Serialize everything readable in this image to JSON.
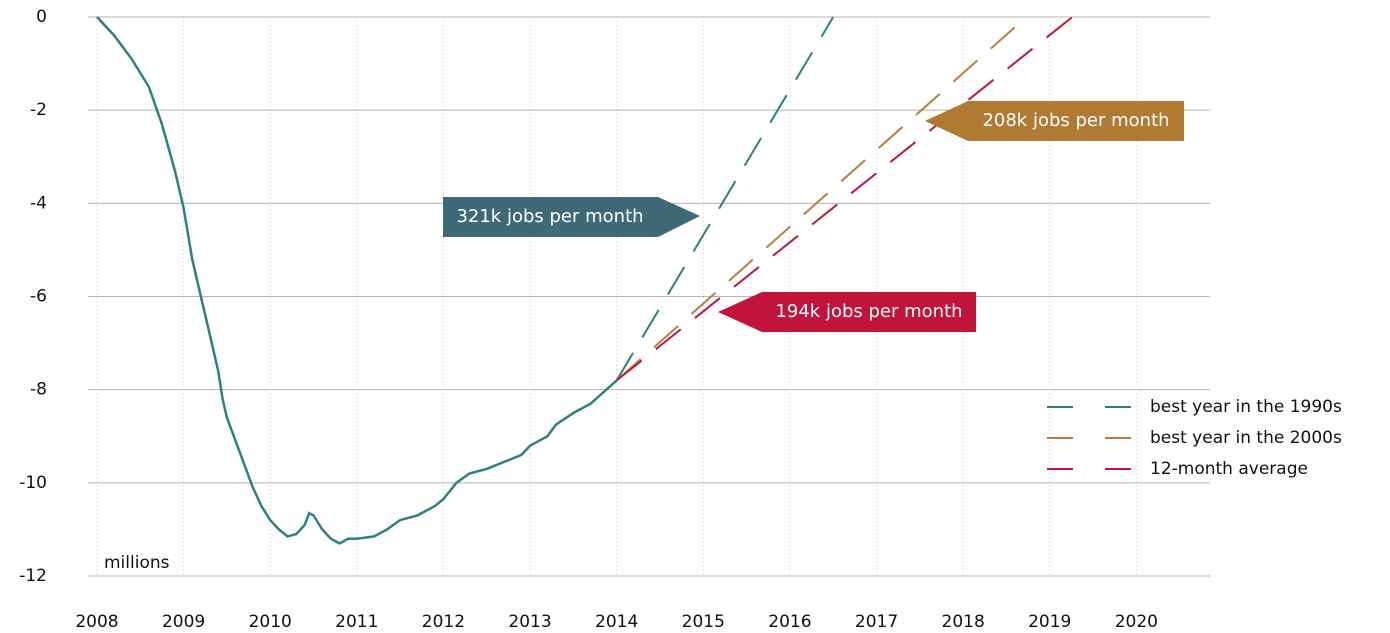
{
  "chart_data": {
    "type": "line",
    "y_label": "millions",
    "xlim": [
      2007.9,
      2020.85
    ],
    "ylim": [
      -12,
      0
    ],
    "xticks": [
      2008,
      2009,
      2010,
      2011,
      2012,
      2013,
      2014,
      2015,
      2016,
      2017,
      2018,
      2019,
      2020
    ],
    "yticks": [
      0,
      -2,
      -4,
      -6,
      -8,
      -10,
      -12
    ],
    "grid": true,
    "legend": "lower right",
    "series": [
      {
        "color": "#2f8080",
        "style": "solid",
        "x": [
          2008.0,
          2008.2,
          2008.4,
          2008.6,
          2008.75,
          2008.9,
          2009.0,
          2009.1,
          2009.2,
          2009.3,
          2009.4,
          2009.45,
          2009.5,
          2009.6,
          2009.7,
          2009.8,
          2009.9,
          2010.0,
          2010.1,
          2010.2,
          2010.3,
          2010.4,
          2010.45,
          2010.5,
          2010.6,
          2010.7,
          2010.8,
          2010.9,
          2011.0,
          2011.2,
          2011.35,
          2011.5,
          2011.7,
          2011.9,
          2012.0,
          2012.15,
          2012.3,
          2012.5,
          2012.7,
          2012.9,
          2013.0,
          2013.2,
          2013.3,
          2013.5,
          2013.7,
          2013.85,
          2014.0
        ],
        "values": [
          0,
          -0.4,
          -0.9,
          -1.5,
          -2.3,
          -3.3,
          -4.1,
          -5.2,
          -6.0,
          -6.8,
          -7.6,
          -8.2,
          -8.6,
          -9.1,
          -9.6,
          -10.1,
          -10.5,
          -10.8,
          -11.0,
          -11.15,
          -11.1,
          -10.9,
          -10.65,
          -10.7,
          -11.0,
          -11.2,
          -11.3,
          -11.2,
          -11.2,
          -11.15,
          -11.0,
          -10.8,
          -10.7,
          -10.5,
          -10.35,
          -10.0,
          -9.8,
          -9.7,
          -9.55,
          -9.4,
          -9.2,
          -9.0,
          -8.75,
          -8.5,
          -8.3,
          -8.05,
          -7.8
        ]
      },
      {
        "name": "best year in the 1990s",
        "color": "#2e7f7f",
        "style": "dashed",
        "x": [
          2014.0,
          2016.5
        ],
        "values": [
          -7.8,
          0
        ]
      },
      {
        "name": "best year in the 2000s",
        "color": "#b5813a",
        "style": "dashed",
        "x": [
          2014.0,
          2018.73
        ],
        "values": [
          -7.8,
          0
        ]
      },
      {
        "name": "12-month average",
        "color": "#c0163c",
        "style": "dashed",
        "x": [
          2014.0,
          2019.26
        ],
        "values": [
          -7.8,
          0
        ]
      }
    ],
    "annotations": [
      {
        "text": "321k jobs per month",
        "color": "#3f6977"
      },
      {
        "text": "208k jobs per month",
        "color": "#b07a35"
      },
      {
        "text": "194k jobs per month",
        "color": "#c0143c"
      }
    ]
  }
}
